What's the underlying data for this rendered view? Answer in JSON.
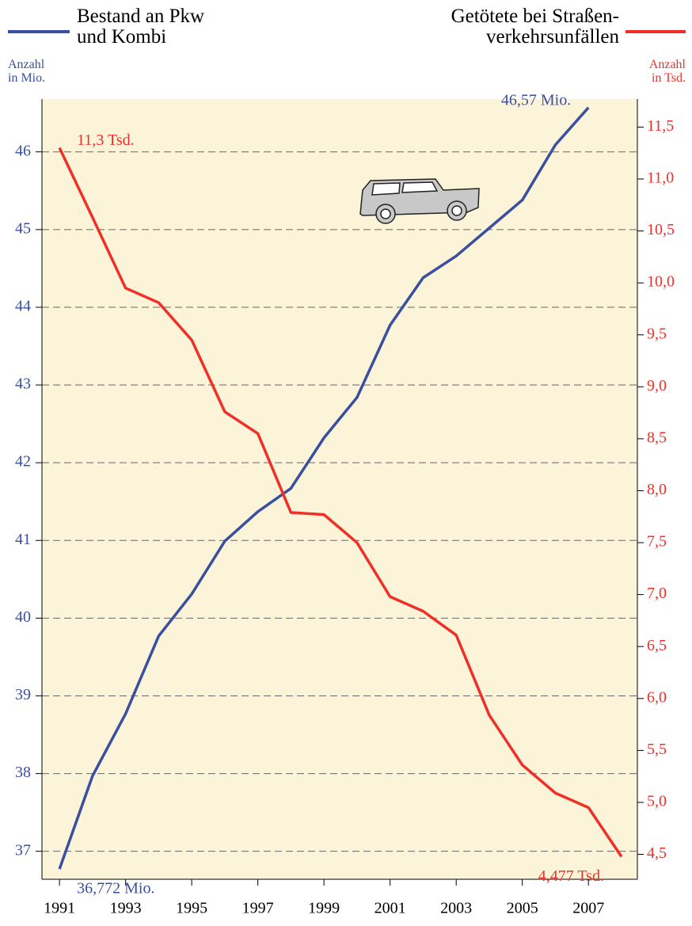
{
  "chart_data": {
    "type": "line",
    "y_label": "Anzahl\nin Mio.",
    "y2_label": "Anzahl\nin Tsd.",
    "x": [
      1991,
      1992,
      1993,
      1994,
      1995,
      1996,
      1997,
      1998,
      1999,
      2000,
      2001,
      2002,
      2003,
      2004,
      2005,
      2006,
      2007,
      2008
    ],
    "xlim": [
      1990.47,
      2008.48
    ],
    "xticks": [
      1991,
      1993,
      1995,
      1997,
      1999,
      2001,
      2003,
      2005,
      2007
    ],
    "ylim": [
      36.64,
      46.68
    ],
    "yticks": [
      37,
      38,
      39,
      40,
      41,
      42,
      43,
      44,
      45,
      46
    ],
    "y2lim": [
      4.26,
      11.77
    ],
    "y2ticks": [
      {
        "value": 4.5,
        "label": "4,5"
      },
      {
        "value": 5,
        "label": "5,0"
      },
      {
        "value": 5.5,
        "label": "5,5"
      },
      {
        "value": 6,
        "label": "6,0"
      },
      {
        "value": 6.5,
        "label": "6,5"
      },
      {
        "value": 7,
        "label": "7,0"
      },
      {
        "value": 7.5,
        "label": "7,5"
      },
      {
        "value": 8,
        "label": "8,0"
      },
      {
        "value": 8.5,
        "label": "8,5"
      },
      {
        "value": 9,
        "label": "9,0"
      },
      {
        "value": 9.5,
        "label": "9,5"
      },
      {
        "value": 10,
        "label": "10,0"
      },
      {
        "value": 10.5,
        "label": "10,5"
      },
      {
        "value": 11,
        "label": "11,0"
      },
      {
        "value": 11.5,
        "label": "11,5"
      }
    ],
    "grid": true,
    "series": [
      {
        "name": "Bestand an Pkw\nund Kombi",
        "color": "#3a4fa0",
        "values": [
          36.772,
          37.97,
          38.77,
          39.77,
          40.31,
          40.99,
          41.37,
          41.67,
          42.32,
          42.84,
          43.77,
          44.38,
          44.66,
          45.02,
          45.38,
          46.09,
          46.57,
          null
        ],
        "value_labels": [
          "36,772 Mio.",
          null,
          null,
          null,
          null,
          null,
          null,
          null,
          null,
          null,
          null,
          null,
          null,
          null,
          null,
          null,
          "46,57 Mio.",
          null
        ]
      },
      {
        "name": "Getötete bei Straßen-\nverkehrsunfällen",
        "color": "#f03028",
        "axis": "y2",
        "values": [
          11.3,
          10.63,
          9.95,
          9.81,
          9.45,
          8.76,
          8.55,
          7.79,
          7.77,
          7.5,
          6.98,
          6.84,
          6.61,
          5.84,
          5.36,
          5.09,
          4.95,
          4.477
        ],
        "value_labels": [
          "11,3 Tsd.",
          null,
          null,
          null,
          null,
          null,
          null,
          null,
          null,
          null,
          null,
          null,
          null,
          null,
          null,
          null,
          null,
          "4,477 Tsd."
        ]
      }
    ]
  }
}
